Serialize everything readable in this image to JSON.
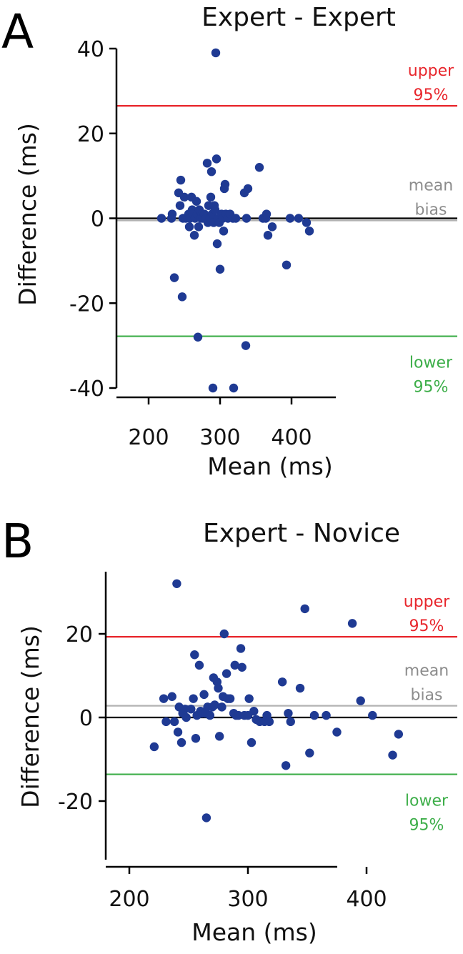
{
  "chart_data": [
    {
      "panel_label": "A",
      "type": "scatter",
      "title": "Expert - Expert",
      "xlabel": "Mean (ms)",
      "ylabel": "Difference (ms)",
      "xlim": [
        180,
        470
      ],
      "ylim": [
        -42,
        44
      ],
      "x_ticks": [
        200,
        300,
        400
      ],
      "y_ticks": [
        -40,
        -20,
        0,
        20,
        40
      ],
      "reference_lines": [
        {
          "name": "zero",
          "value": 0,
          "color": "#000000"
        },
        {
          "name": "mean_bias",
          "value": -0.5,
          "color": "#b3b3b3",
          "label_lines": [
            "mean",
            "bias"
          ]
        },
        {
          "name": "upper_95",
          "value": 26.5,
          "color": "#e8262c",
          "label_lines": [
            "upper",
            "95%"
          ]
        },
        {
          "name": "lower_95",
          "value": -27.8,
          "color": "#3dae49",
          "label_lines": [
            "lower",
            "95%"
          ]
        }
      ],
      "point_color": "#1f3a93",
      "points": [
        [
          218,
          0
        ],
        [
          232,
          0
        ],
        [
          233,
          1
        ],
        [
          236,
          -14
        ],
        [
          242,
          6
        ],
        [
          244,
          3
        ],
        [
          245,
          9
        ],
        [
          247,
          -18.5
        ],
        [
          248,
          0
        ],
        [
          250,
          5
        ],
        [
          252,
          0
        ],
        [
          256,
          1
        ],
        [
          257,
          -2
        ],
        [
          258,
          0
        ],
        [
          260,
          5
        ],
        [
          261,
          2
        ],
        [
          262,
          1
        ],
        [
          264,
          -4
        ],
        [
          265,
          0
        ],
        [
          267,
          4
        ],
        [
          268,
          1
        ],
        [
          269,
          -28
        ],
        [
          270,
          -2
        ],
        [
          271,
          2
        ],
        [
          273,
          0
        ],
        [
          275,
          1
        ],
        [
          276,
          0
        ],
        [
          278,
          1
        ],
        [
          280,
          0
        ],
        [
          282,
          13
        ],
        [
          283,
          -1
        ],
        [
          284,
          3
        ],
        [
          286,
          0
        ],
        [
          287,
          5
        ],
        [
          288,
          11
        ],
        [
          289,
          1
        ],
        [
          290,
          -40
        ],
        [
          291,
          -1
        ],
        [
          292,
          3
        ],
        [
          293,
          2
        ],
        [
          294,
          39
        ],
        [
          295,
          14
        ],
        [
          296,
          -6
        ],
        [
          297,
          0
        ],
        [
          299,
          -1
        ],
        [
          300,
          -12
        ],
        [
          302,
          1
        ],
        [
          304,
          0
        ],
        [
          305,
          -3
        ],
        [
          306,
          7
        ],
        [
          307,
          8
        ],
        [
          308,
          1
        ],
        [
          311,
          0
        ],
        [
          314,
          1
        ],
        [
          318,
          0
        ],
        [
          319,
          -40
        ],
        [
          322,
          0
        ],
        [
          334,
          6
        ],
        [
          336,
          -30
        ],
        [
          337,
          0
        ],
        [
          339,
          7
        ],
        [
          355,
          12
        ],
        [
          360,
          0
        ],
        [
          364,
          0
        ],
        [
          365,
          1
        ],
        [
          367,
          -4
        ],
        [
          373,
          -2
        ],
        [
          393,
          -11
        ],
        [
          398,
          0
        ],
        [
          410,
          0
        ],
        [
          421,
          -1
        ],
        [
          425,
          -3
        ]
      ]
    },
    {
      "panel_label": "B",
      "type": "scatter",
      "title": "Expert - Novice",
      "xlabel": "Mean (ms)",
      "ylabel": "Difference (ms)",
      "xlim": [
        182,
        480
      ],
      "ylim": [
        -35,
        34
      ],
      "x_ticks": [
        200,
        300,
        400
      ],
      "y_ticks": [
        -20,
        0,
        20
      ],
      "reference_lines": [
        {
          "name": "zero",
          "value": 0,
          "color": "#000000"
        },
        {
          "name": "mean_bias",
          "value": 2.8,
          "color": "#b3b3b3",
          "label_lines": [
            "mean",
            "bias"
          ]
        },
        {
          "name": "upper_95",
          "value": 19.3,
          "color": "#e8262c",
          "label_lines": [
            "upper",
            "95%"
          ]
        },
        {
          "name": "lower_95",
          "value": -13.6,
          "color": "#3dae49",
          "label_lines": [
            "lower",
            "95%"
          ]
        }
      ],
      "point_color": "#1f3a93",
      "points": [
        [
          221,
          -7
        ],
        [
          229,
          4.5
        ],
        [
          231,
          -1
        ],
        [
          236,
          5
        ],
        [
          238,
          -1
        ],
        [
          240,
          32
        ],
        [
          241,
          -3.5
        ],
        [
          242,
          2.5
        ],
        [
          244,
          -6
        ],
        [
          245,
          1
        ],
        [
          247,
          2
        ],
        [
          248,
          0
        ],
        [
          252,
          2
        ],
        [
          254,
          4.5
        ],
        [
          255,
          15
        ],
        [
          256,
          -5
        ],
        [
          257,
          0.5
        ],
        [
          259,
          12.5
        ],
        [
          260,
          1.5
        ],
        [
          261,
          1
        ],
        [
          263,
          5.5
        ],
        [
          264,
          1
        ],
        [
          265,
          -24
        ],
        [
          266,
          2.5
        ],
        [
          268,
          0.5
        ],
        [
          270,
          2.5
        ],
        [
          271,
          9.5
        ],
        [
          272,
          3
        ],
        [
          274,
          8.5
        ],
        [
          275,
          7
        ],
        [
          276,
          -4.5
        ],
        [
          278,
          2.5
        ],
        [
          279,
          5
        ],
        [
          280,
          20
        ],
        [
          282,
          10.5
        ],
        [
          283,
          4.5
        ],
        [
          285,
          4.5
        ],
        [
          288,
          1
        ],
        [
          289,
          12.5
        ],
        [
          290,
          0.5
        ],
        [
          292,
          0.5
        ],
        [
          294,
          16.5
        ],
        [
          295,
          12
        ],
        [
          297,
          0.5
        ],
        [
          300,
          0.5
        ],
        [
          301,
          4.5
        ],
        [
          303,
          -6
        ],
        [
          305,
          1.5
        ],
        [
          307,
          -0.5
        ],
        [
          310,
          -1
        ],
        [
          314,
          -1
        ],
        [
          316,
          0.5
        ],
        [
          318,
          -1
        ],
        [
          329,
          8.5
        ],
        [
          332,
          -11.5
        ],
        [
          334,
          1
        ],
        [
          336,
          -1
        ],
        [
          344,
          7
        ],
        [
          348,
          26
        ],
        [
          352,
          -8.5
        ],
        [
          356,
          0.5
        ],
        [
          366,
          0.5
        ],
        [
          375,
          -3.5
        ],
        [
          388,
          22.5
        ],
        [
          395,
          4
        ],
        [
          405,
          0.5
        ],
        [
          422,
          -9
        ],
        [
          427,
          -4
        ]
      ]
    }
  ]
}
